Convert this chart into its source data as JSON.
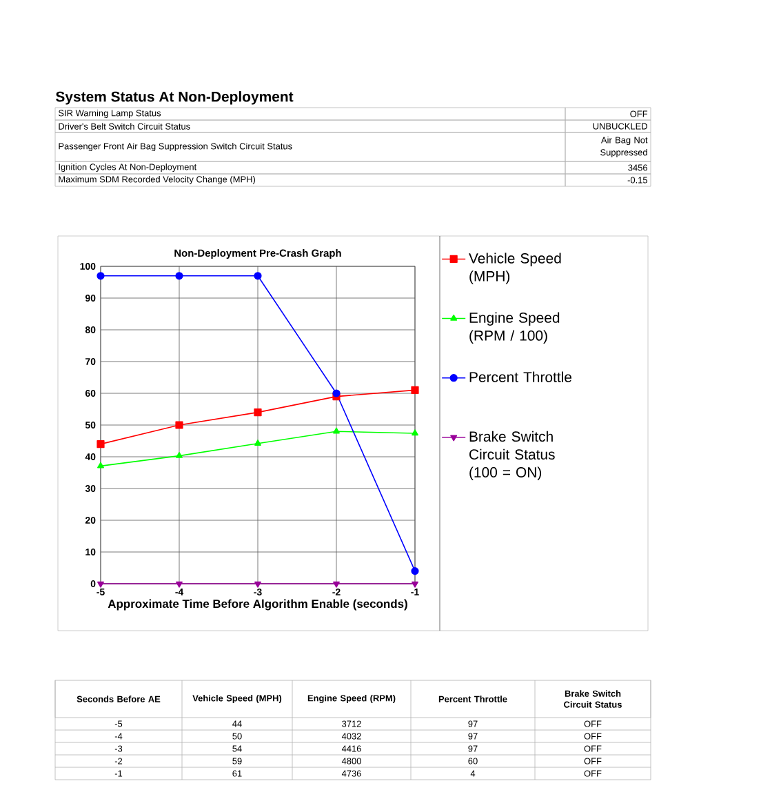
{
  "chart_data": {
    "type": "line",
    "title": "Non-Deployment Pre-Crash Graph",
    "xlabel": "Approximate Time Before Algorithm Enable (seconds)",
    "x": [
      -5,
      -4,
      -3,
      -2,
      -1
    ],
    "xlim": [
      -5,
      -1
    ],
    "xticks": [
      -5,
      -4,
      -3,
      -2,
      -1
    ],
    "ylim": [
      0,
      100
    ],
    "yticks": [
      0,
      10,
      20,
      30,
      40,
      50,
      60,
      70,
      80,
      90,
      100
    ],
    "grid": true,
    "legend": "right",
    "series": [
      {
        "name": "Vehicle Speed (MPH)",
        "marker": "square",
        "color": "#ff0000",
        "values": [
          44,
          50,
          54,
          59,
          61
        ]
      },
      {
        "name": "Engine Speed (RPM / 100)",
        "marker": "triangle",
        "color": "#00ff00",
        "values": [
          37.1,
          40.3,
          44.2,
          48,
          47.4
        ]
      },
      {
        "name": "Percent Throttle",
        "marker": "circle",
        "color": "#0000ff",
        "values": [
          97,
          97,
          97,
          60,
          4
        ]
      },
      {
        "name": "Brake Switch Circuit Status (100 = ON)",
        "marker": "triangle-down",
        "color": "#990099",
        "values": [
          0,
          0,
          0,
          0,
          0
        ]
      }
    ],
    "annotations": [
      "System Status At Non-Deployment",
      "SIR Warning Lamp Status",
      "OFF",
      "Driver's Belt Switch Circuit Status",
      "UNBUCKLED",
      "Passenger Front Air Bag Suppression Switch Circuit Status",
      "Air Bag Not Suppressed",
      "Ignition Cycles At Non-Deployment",
      "3456",
      "Maximum SDM Recorded Velocity Change (MPH)",
      "-0.15",
      "Seconds Before AE",
      "Vehicle Speed (MPH)",
      "Engine Speed (RPM)",
      "Percent Throttle",
      "Brake Switch Circuit Status",
      "-5",
      "44",
      "3712",
      "97",
      "OFF",
      "-4",
      "50",
      "4032",
      "97",
      "OFF",
      "-3",
      "54",
      "4416",
      "97",
      "OFF",
      "-2",
      "59",
      "4800",
      "60",
      "OFF",
      "-1",
      "61",
      "4736",
      "4",
      "OFF"
    ]
  }
}
